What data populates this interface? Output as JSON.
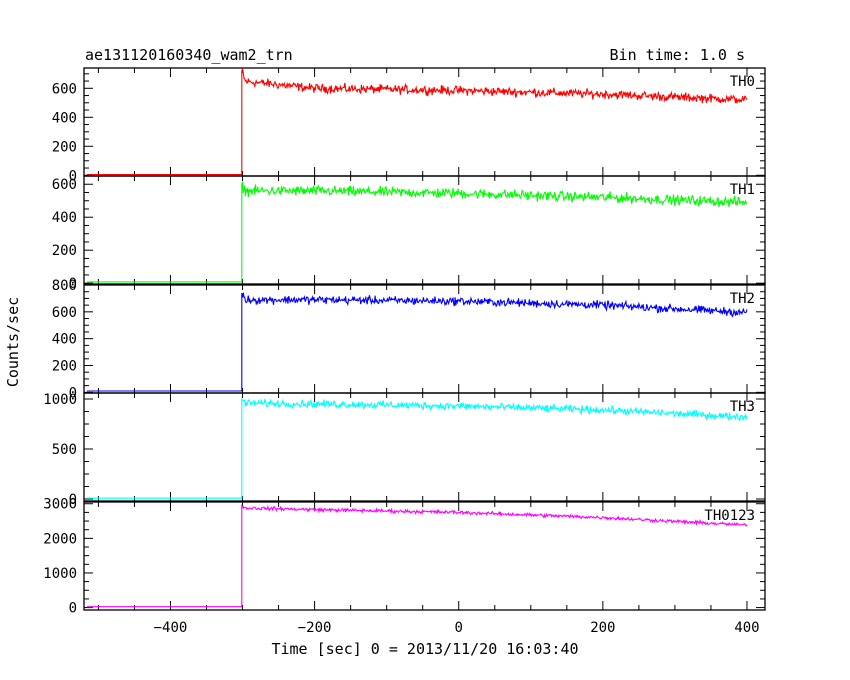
{
  "header": {
    "title": "ae131120160340_wam2_trn",
    "bin_time": "Bin time: 1.0 s"
  },
  "axes": {
    "xlabel": "Time [sec] 0 = 2013/11/20 16:03:40",
    "ylabel": "Counts/sec"
  },
  "chart_data": {
    "type": "line",
    "title": "ae131120160340_wam2_trn",
    "xlabel": "Time [sec] 0 = 2013/11/20 16:03:40",
    "ylabel": "Counts/sec",
    "xlim": [
      -520,
      425
    ],
    "x_ticks": [
      -400,
      -200,
      0,
      200,
      400
    ],
    "x_tick_labels": [
      "−400",
      "−200",
      "0",
      "200",
      "400"
    ],
    "onset_time": -301,
    "grid": false,
    "legend": "none",
    "panels": [
      {
        "name": "TH0",
        "color": "#ff0000",
        "ylim": [
          -5,
          740
        ],
        "y_ticks": [
          0,
          200,
          400,
          600
        ],
        "y_tick_labels": [
          "0",
          "200",
          "400",
          "600"
        ],
        "pre_onset_level": 5,
        "peak": 720,
        "level_at": {
          "-300": 650,
          "-200": 600,
          "0": 585,
          "200": 560,
          "400": 520
        },
        "noise": 25
      },
      {
        "name": "TH1",
        "color": "#00ff00",
        "ylim": [
          -5,
          650
        ],
        "y_ticks": [
          0,
          200,
          400,
          600
        ],
        "y_tick_labels": [
          "0",
          "200",
          "400",
          "600"
        ],
        "pre_onset_level": 8,
        "peak": 600,
        "level_at": {
          "-300": 560,
          "-200": 560,
          "0": 545,
          "200": 520,
          "400": 490
        },
        "noise": 25
      },
      {
        "name": "TH2",
        "color": "#0000ff",
        "ylim": [
          -5,
          800
        ],
        "y_ticks": [
          0,
          200,
          400,
          600,
          800
        ],
        "y_tick_labels": [
          "0",
          "200",
          "400",
          "600",
          "800"
        ],
        "pre_onset_level": 10,
        "peak": 740,
        "level_at": {
          "-300": 690,
          "-200": 690,
          "0": 680,
          "200": 650,
          "400": 595
        },
        "noise": 25
      },
      {
        "name": "TH3",
        "color": "#00ffff",
        "ylim": [
          -20,
          1060
        ],
        "y_ticks": [
          0,
          500,
          1000
        ],
        "y_tick_labels": [
          "0",
          "500",
          "1000"
        ],
        "pre_onset_level": 8,
        "peak": 1000,
        "level_at": {
          "-300": 960,
          "-200": 950,
          "0": 930,
          "200": 890,
          "400": 820
        },
        "noise": 30
      },
      {
        "name": "TH0123",
        "color": "#ff00ff",
        "ylim": [
          -70,
          3050
        ],
        "y_ticks": [
          0,
          1000,
          2000,
          3000
        ],
        "y_tick_labels": [
          "0",
          "1000",
          "2000",
          "3000"
        ],
        "pre_onset_level": 25,
        "peak": 2950,
        "level_at": {
          "-300": 2880,
          "-200": 2830,
          "0": 2750,
          "200": 2600,
          "400": 2380
        },
        "noise": 40
      }
    ]
  }
}
